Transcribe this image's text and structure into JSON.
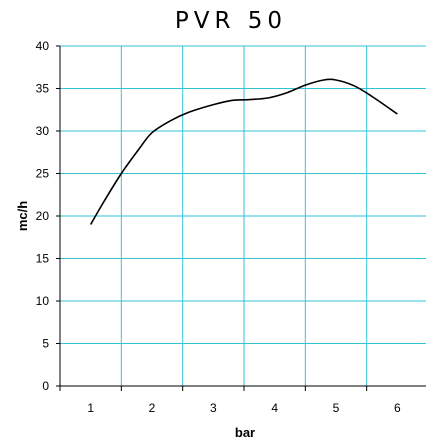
{
  "chart_data": {
    "type": "line",
    "title": "PVR 50",
    "xlabel": "bar",
    "ylabel": "mc/h",
    "x_ticks": [
      "1",
      "2",
      "3",
      "4",
      "5",
      "6"
    ],
    "y_ticks": [
      "0",
      "5",
      "10",
      "15",
      "20",
      "25",
      "30",
      "35",
      "40"
    ],
    "xlim": [
      0.5,
      6.5
    ],
    "ylim": [
      0,
      40
    ],
    "grid": true,
    "colors": {
      "grid": "#33c3d6",
      "line": "#000000",
      "axis": "#000000"
    },
    "series": [
      {
        "x": [
          1,
          1.2,
          1.5,
          1.8,
          2,
          2.3,
          2.6,
          3,
          3.3,
          3.6,
          3.9,
          4.2,
          4.5,
          4.8,
          5,
          5.3,
          5.6,
          6
        ],
        "values": [
          19,
          21.5,
          25,
          28,
          29.8,
          31.2,
          32.2,
          33.1,
          33.6,
          33.7,
          33.9,
          34.5,
          35.4,
          36,
          36,
          35.3,
          34,
          32
        ]
      }
    ]
  }
}
